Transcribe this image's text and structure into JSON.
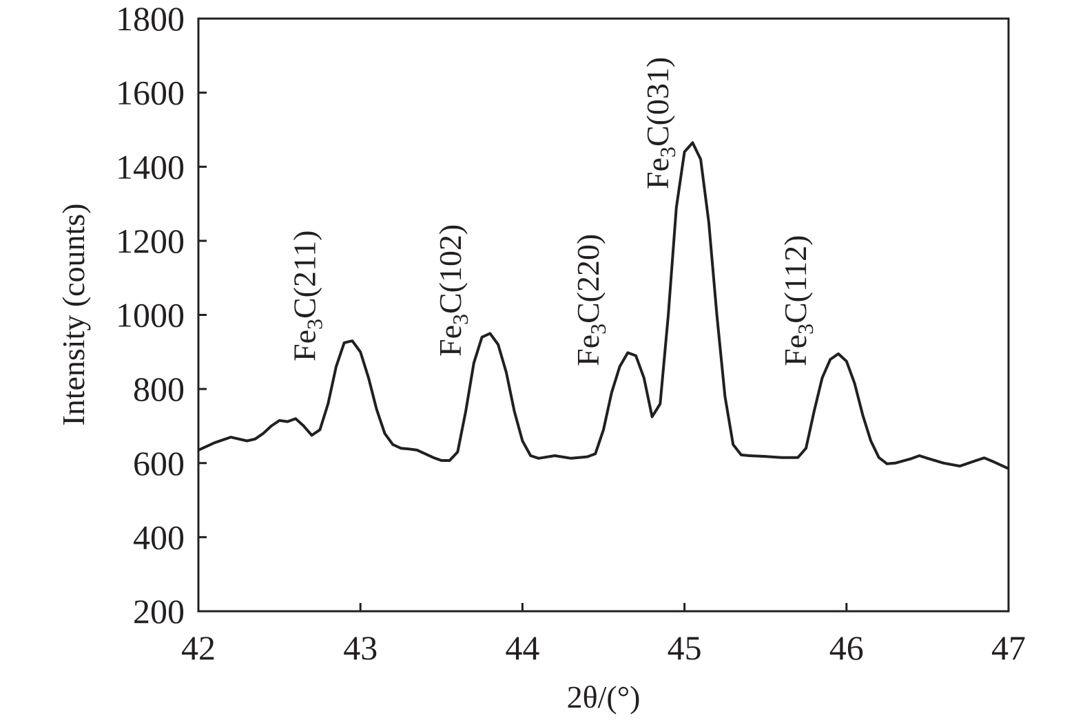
{
  "chart_data": {
    "type": "line",
    "title": "",
    "xlabel": "2θ/(°)",
    "ylabel": "Intensity (counts)",
    "xlim": [
      42,
      47
    ],
    "ylim": [
      200,
      1800
    ],
    "xticks": [
      42,
      43,
      44,
      45,
      46,
      47
    ],
    "yticks": [
      200,
      400,
      600,
      800,
      1000,
      1200,
      1400,
      1600,
      1800
    ],
    "grid": false,
    "legend": "none",
    "line_color": "#231f20",
    "series": [
      {
        "x": [
          42.0,
          42.1,
          42.2,
          42.3,
          42.35,
          42.4,
          42.45,
          42.5,
          42.55,
          42.6,
          42.65,
          42.7,
          42.75,
          42.8,
          42.85,
          42.9,
          42.95,
          43.0,
          43.05,
          43.1,
          43.15,
          43.2,
          43.25,
          43.3,
          43.35,
          43.4,
          43.45,
          43.5,
          43.55,
          43.6,
          43.65,
          43.7,
          43.75,
          43.8,
          43.85,
          43.9,
          43.95,
          44.0,
          44.05,
          44.1,
          44.2,
          44.3,
          44.4,
          44.45,
          44.5,
          44.55,
          44.6,
          44.65,
          44.7,
          44.75,
          44.8,
          44.85,
          44.9,
          44.95,
          45.0,
          45.05,
          45.1,
          45.15,
          45.2,
          45.25,
          45.3,
          45.35,
          45.4,
          45.5,
          45.6,
          45.7,
          45.75,
          45.8,
          45.85,
          45.9,
          45.95,
          46.0,
          46.05,
          46.1,
          46.15,
          46.2,
          46.25,
          46.3,
          46.4,
          46.45,
          46.5,
          46.6,
          46.7,
          46.8,
          46.85,
          46.9,
          47.0
        ],
        "values": [
          635,
          655,
          670,
          660,
          665,
          680,
          700,
          715,
          712,
          720,
          700,
          675,
          690,
          760,
          860,
          925,
          930,
          900,
          830,
          745,
          680,
          650,
          640,
          638,
          635,
          625,
          615,
          607,
          607,
          630,
          740,
          870,
          940,
          950,
          920,
          845,
          740,
          660,
          620,
          613,
          620,
          613,
          617,
          625,
          690,
          790,
          860,
          898,
          890,
          830,
          725,
          760,
          1000,
          1290,
          1440,
          1465,
          1420,
          1250,
          1000,
          780,
          650,
          622,
          620,
          618,
          615,
          615,
          640,
          740,
          830,
          880,
          895,
          875,
          815,
          730,
          660,
          615,
          598,
          600,
          612,
          620,
          613,
          600,
          592,
          607,
          614,
          605,
          585
        ]
      }
    ],
    "annotations": [
      {
        "main": "Fe",
        "sub": "3",
        "rest": "C(211)",
        "x": 42.72
      },
      {
        "main": "Fe",
        "sub": "3",
        "rest": "C(102)",
        "x": 43.62
      },
      {
        "main": "Fe",
        "sub": "3",
        "rest": "C(220)",
        "x": 44.47
      },
      {
        "main": "Fe",
        "sub": "3",
        "rest": "C(031)",
        "x": 44.9
      },
      {
        "main": "Fe",
        "sub": "3",
        "rest": "C(112)",
        "x": 45.75
      }
    ]
  }
}
